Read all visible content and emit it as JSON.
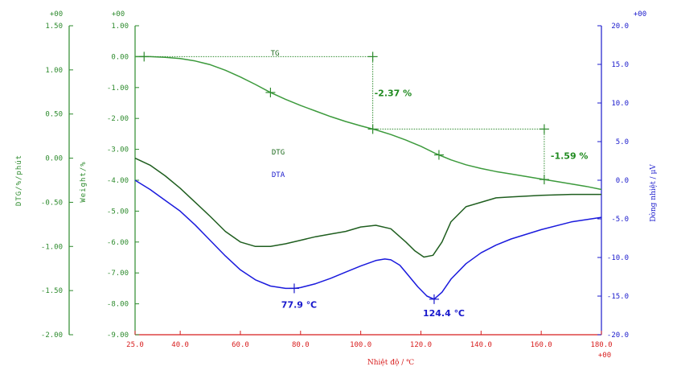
{
  "chart_data": {
    "type": "line",
    "x_axis": {
      "label": "Nhiệt độ / ℃",
      "range": [
        25.0,
        180.0
      ],
      "ticks": [
        "25.0",
        "40.0",
        "60.0",
        "80.0",
        "100.0",
        "120.0",
        "140.0",
        "160.0",
        "180.0"
      ],
      "tick_values": [
        25,
        40,
        60,
        80,
        100,
        120,
        140,
        160,
        180
      ],
      "multiplier": "+00"
    },
    "y_axes": {
      "dtg": {
        "label": "DTG/%/phút",
        "range": [
          -2.0,
          1.5
        ],
        "ticks": [
          "1.50",
          "1.00",
          "0.50",
          "0.00",
          "-0.50",
          "-1.00",
          "-1.50",
          "-2.00"
        ],
        "tick_values": [
          1.5,
          1.0,
          0.5,
          0.0,
          -0.5,
          -1.0,
          -1.5,
          -2.0
        ],
        "multiplier": "+00"
      },
      "weight": {
        "label": "Weight/%",
        "range": [
          -9.0,
          1.0
        ],
        "ticks": [
          "1.00",
          "0.00",
          "-1.00",
          "-2.00",
          "-3.00",
          "-4.00",
          "-5.00",
          "-6.00",
          "-7.00",
          "-8.00",
          "-9.00"
        ],
        "tick_values": [
          1,
          0,
          -1,
          -2,
          -3,
          -4,
          -5,
          -6,
          -7,
          -8,
          -9
        ],
        "multiplier": "+00"
      },
      "dta": {
        "label": "Dòng nhiệt / μV",
        "range": [
          -20.0,
          20.0
        ],
        "ticks": [
          "20.0",
          "15.0",
          "10.0",
          "5.0",
          "0.0",
          "-5.0",
          "-10.0",
          "-15.0",
          "-20.0"
        ],
        "tick_values": [
          20,
          15,
          10,
          5,
          0,
          -5,
          -10,
          -15,
          -20
        ],
        "multiplier": "+00"
      }
    },
    "series": [
      {
        "name": "TG",
        "axis": "weight",
        "color": "#3c9a3c",
        "x": [
          25,
          30,
          35,
          40,
          45,
          50,
          55,
          60,
          65,
          70,
          75,
          80,
          85,
          90,
          95,
          100,
          105,
          110,
          115,
          120,
          125,
          130,
          135,
          140,
          145,
          150,
          155,
          160,
          165,
          170,
          175,
          180
        ],
        "y": [
          0.0,
          0.0,
          -0.02,
          -0.06,
          -0.14,
          -0.26,
          -0.44,
          -0.66,
          -0.9,
          -1.16,
          -1.38,
          -1.58,
          -1.76,
          -1.94,
          -2.1,
          -2.24,
          -2.37,
          -2.52,
          -2.7,
          -2.9,
          -3.14,
          -3.34,
          -3.5,
          -3.62,
          -3.72,
          -3.8,
          -3.88,
          -3.96,
          -4.04,
          -4.12,
          -4.2,
          -4.3
        ]
      },
      {
        "name": "DTG",
        "axis": "dtg",
        "color": "#1f5e1f",
        "x": [
          25,
          30,
          35,
          40,
          45,
          50,
          55,
          60,
          65,
          70,
          75,
          80,
          85,
          90,
          95,
          100,
          105,
          110,
          115,
          118,
          121,
          124,
          127,
          130,
          135,
          140,
          145,
          150,
          160,
          170,
          180
        ],
        "y": [
          0.0,
          -0.08,
          -0.2,
          -0.34,
          -0.5,
          -0.66,
          -0.83,
          -0.95,
          -1.0,
          -1.0,
          -0.97,
          -0.93,
          -0.89,
          -0.86,
          -0.83,
          -0.78,
          -0.76,
          -0.8,
          -0.95,
          -1.05,
          -1.12,
          -1.1,
          -0.95,
          -0.72,
          -0.55,
          -0.5,
          -0.45,
          -0.44,
          -0.42,
          -0.41,
          -0.41
        ]
      },
      {
        "name": "DTA",
        "axis": "dta",
        "color": "#1a1add",
        "x": [
          25,
          30,
          35,
          40,
          45,
          50,
          55,
          60,
          65,
          70,
          75,
          78,
          80,
          85,
          90,
          95,
          100,
          105,
          108,
          110,
          113,
          116,
          119,
          122,
          124.4,
          127,
          130,
          135,
          140,
          145,
          150,
          160,
          170,
          180
        ],
        "y": [
          0.0,
          -1.2,
          -2.6,
          -4.0,
          -5.8,
          -7.8,
          -9.8,
          -11.6,
          -12.9,
          -13.7,
          -14.0,
          -14.0,
          -13.9,
          -13.4,
          -12.7,
          -11.9,
          -11.1,
          -10.4,
          -10.2,
          -10.3,
          -11.0,
          -12.4,
          -13.8,
          -15.0,
          -15.4,
          -14.5,
          -12.8,
          -10.8,
          -9.4,
          -8.4,
          -7.6,
          -6.4,
          -5.4,
          -4.8
        ]
      }
    ],
    "series_labels": [
      "TG",
      "DTG",
      "DTA"
    ],
    "annotations": [
      {
        "text": "-2.37 %",
        "series": "TG"
      },
      {
        "text": "-1.59 %",
        "series": "TG"
      },
      {
        "text": "77.9 ℃",
        "series": "DTA"
      },
      {
        "text": "124.4 ℃",
        "series": "DTA"
      }
    ],
    "tg_steps": [
      {
        "from_x": 30,
        "to_x": 104,
        "label": "-2.37 %"
      },
      {
        "from_x": 104,
        "to_x": 161,
        "label": "-1.59 %"
      }
    ],
    "tg_markers_x": [
      28,
      70,
      104,
      126,
      161
    ],
    "dta_peaks_x": [
      77.9,
      124.4
    ],
    "grid": false
  }
}
